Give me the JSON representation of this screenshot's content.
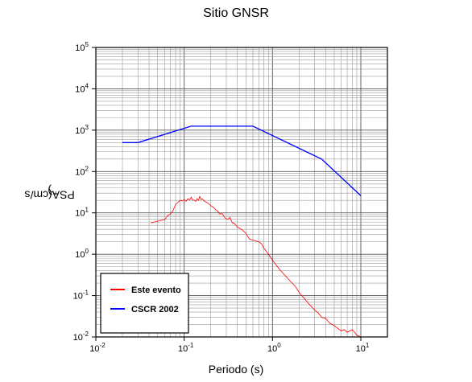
{
  "chart_data": {
    "type": "line",
    "title": "Sitio GNSR",
    "xlabel": "Periodo (s)",
    "ylabel": "PSA(cm/s²)",
    "ylabel_base": "PSA(cm/s",
    "ylabel_sup": "2",
    "ylabel_tail": ")",
    "xscale": "log",
    "yscale": "log",
    "xlim": [
      0.01,
      20
    ],
    "ylim": [
      0.01,
      100000
    ],
    "grid": true,
    "legend_position": "bottom-left",
    "x_ticks": [
      {
        "base": "10",
        "exp": "-2"
      },
      {
        "base": "10",
        "exp": "-1"
      },
      {
        "base": "10",
        "exp": "0"
      },
      {
        "base": "10",
        "exp": "1"
      }
    ],
    "y_ticks": [
      {
        "base": "10",
        "exp": "-2"
      },
      {
        "base": "10",
        "exp": "-1"
      },
      {
        "base": "10",
        "exp": "0"
      },
      {
        "base": "10",
        "exp": "1"
      },
      {
        "base": "10",
        "exp": "2"
      },
      {
        "base": "10",
        "exp": "3"
      },
      {
        "base": "10",
        "exp": "4"
      },
      {
        "base": "10",
        "exp": "5"
      }
    ],
    "series": [
      {
        "name": "Este evento",
        "color": "#ff0000",
        "x": [
          0.042,
          0.05,
          0.055,
          0.06,
          0.065,
          0.07,
          0.075,
          0.08,
          0.085,
          0.09,
          0.095,
          0.1,
          0.105,
          0.11,
          0.115,
          0.12,
          0.125,
          0.13,
          0.135,
          0.14,
          0.145,
          0.15,
          0.155,
          0.16,
          0.17,
          0.18,
          0.19,
          0.2,
          0.21,
          0.22,
          0.23,
          0.24,
          0.25,
          0.27,
          0.29,
          0.31,
          0.33,
          0.35,
          0.37,
          0.4,
          0.43,
          0.46,
          0.5,
          0.55,
          0.6,
          0.65,
          0.7,
          0.75,
          0.8,
          0.9,
          1.0,
          1.1,
          1.2,
          1.4,
          1.6,
          1.8,
          2.0,
          2.3,
          2.6,
          3.0,
          3.3,
          3.6,
          4.0,
          4.5,
          5.0,
          5.5,
          6.0,
          6.5,
          7.0,
          7.5,
          8.0,
          8.5,
          9.0,
          9.5,
          10.0
        ],
        "y": [
          5.7,
          6.3,
          6.6,
          6.8,
          8.5,
          9.5,
          11.5,
          16,
          18,
          20,
          19.5,
          21,
          19,
          22,
          20.5,
          24,
          20,
          20.5,
          19,
          22,
          20,
          25,
          21,
          22,
          19,
          18,
          16.5,
          15,
          14,
          13,
          11.5,
          11,
          9.5,
          9.5,
          7.5,
          7.0,
          7.8,
          5.8,
          5.6,
          4.5,
          4.2,
          3.8,
          3.2,
          2.3,
          2.2,
          2.1,
          2.0,
          1.8,
          1.4,
          1.0,
          0.72,
          0.55,
          0.43,
          0.3,
          0.22,
          0.17,
          0.12,
          0.085,
          0.062,
          0.045,
          0.038,
          0.03,
          0.028,
          0.021,
          0.019,
          0.016,
          0.014,
          0.015,
          0.013,
          0.014,
          0.015,
          0.013,
          0.011,
          0.0105,
          0.01
        ]
      },
      {
        "name": "CSCR 2002",
        "color": "#0000ff",
        "x": [
          0.02,
          0.03,
          0.12,
          0.6,
          3.6,
          10.0
        ],
        "y": [
          500,
          500,
          1250,
          1250,
          200,
          26
        ]
      }
    ]
  }
}
